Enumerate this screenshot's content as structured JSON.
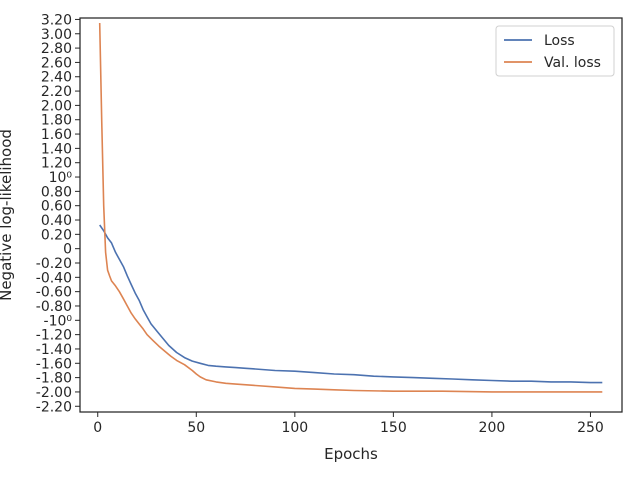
{
  "chart_data": {
    "type": "line",
    "xlabel": "Epochs",
    "ylabel": "Negative log-likelihood",
    "xlim": [
      -9,
      266
    ],
    "ylim": [
      -2.28,
      3.22
    ],
    "x_ticks": [
      0,
      50,
      100,
      150,
      200,
      250
    ],
    "x_tick_labels": [
      "0",
      "50",
      "100",
      "150",
      "200",
      "250"
    ],
    "y_ticks": [
      -2.2,
      -2.0,
      -1.8,
      -1.6,
      -1.4,
      -1.2,
      -1.0,
      -0.8,
      -0.6,
      -0.4,
      -0.2,
      0,
      0.2,
      0.4,
      0.6,
      0.8,
      1.0,
      1.2,
      1.4,
      1.6,
      1.8,
      2.0,
      2.2,
      2.4,
      2.6,
      2.8,
      3.0,
      3.2
    ],
    "y_tick_labels": [
      "-2.20",
      "-2.00",
      "-1.80",
      "-1.60",
      "-1.40",
      "-1.20",
      "-10⁰",
      "-0.80",
      "-0.60",
      "-0.40",
      "-0.20",
      "0",
      "0.20",
      "0.40",
      "0.60",
      "0.80",
      "10⁰",
      "1.20",
      "1.40",
      "1.60",
      "1.80",
      "2.00",
      "2.20",
      "2.40",
      "2.60",
      "2.80",
      "3.00",
      "3.20"
    ],
    "grid": false,
    "legend_position": "top-right",
    "series": [
      {
        "name": "Loss",
        "color": "#4c72b0",
        "x": [
          1,
          3,
          5,
          7,
          9,
          11,
          13,
          15,
          17,
          19,
          21,
          23,
          25,
          27,
          30,
          33,
          36,
          40,
          44,
          48,
          52,
          56,
          60,
          65,
          70,
          75,
          80,
          90,
          100,
          110,
          120,
          130,
          140,
          150,
          160,
          170,
          180,
          190,
          200,
          210,
          220,
          230,
          240,
          250,
          256
        ],
        "y": [
          0.33,
          0.25,
          0.15,
          0.08,
          -0.05,
          -0.15,
          -0.25,
          -0.38,
          -0.5,
          -0.62,
          -0.72,
          -0.85,
          -0.95,
          -1.05,
          -1.15,
          -1.25,
          -1.35,
          -1.45,
          -1.52,
          -1.57,
          -1.6,
          -1.63,
          -1.64,
          -1.65,
          -1.66,
          -1.67,
          -1.68,
          -1.7,
          -1.71,
          -1.73,
          -1.75,
          -1.76,
          -1.78,
          -1.79,
          -1.8,
          -1.81,
          -1.82,
          -1.83,
          -1.84,
          -1.85,
          -1.85,
          -1.86,
          -1.86,
          -1.87,
          -1.87
        ]
      },
      {
        "name": "Val. loss",
        "color": "#dd8452",
        "x": [
          1,
          2,
          3,
          4,
          5,
          6,
          7,
          9,
          11,
          13,
          15,
          17,
          19,
          21,
          23,
          25,
          28,
          31,
          34,
          37,
          40,
          44,
          48,
          50,
          52,
          55,
          60,
          65,
          70,
          80,
          90,
          100,
          110,
          120,
          130,
          150,
          175,
          200,
          225,
          256
        ],
        "y": [
          3.15,
          1.8,
          0.6,
          -0.05,
          -0.3,
          -0.38,
          -0.45,
          -0.52,
          -0.6,
          -0.7,
          -0.8,
          -0.9,
          -0.98,
          -1.05,
          -1.12,
          -1.2,
          -1.28,
          -1.36,
          -1.43,
          -1.5,
          -1.56,
          -1.62,
          -1.7,
          -1.75,
          -1.79,
          -1.83,
          -1.86,
          -1.88,
          -1.89,
          -1.91,
          -1.93,
          -1.95,
          -1.96,
          -1.97,
          -1.98,
          -1.99,
          -1.99,
          -2.0,
          -2.0,
          -2.0
        ]
      }
    ]
  }
}
